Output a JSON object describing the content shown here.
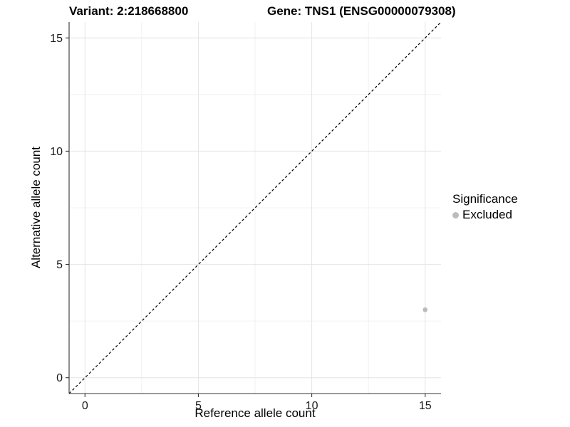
{
  "chart_data": {
    "type": "scatter",
    "title_left": "Variant: 2:218668800",
    "title_right": "Gene: TNS1 (ENSG00000079308)",
    "xlabel": "Reference allele count",
    "ylabel": "Alternative allele count",
    "xlim": [
      -0.7,
      15.7
    ],
    "ylim": [
      -0.7,
      15.7
    ],
    "x_ticks": [
      0,
      5,
      10,
      15
    ],
    "y_ticks": [
      0,
      5,
      10,
      15
    ],
    "grid": {
      "major": true,
      "minor": true
    },
    "legend": {
      "title": "Significance",
      "position": "right",
      "items": [
        {
          "label": "Excluded",
          "color": "#bcbcbc"
        }
      ]
    },
    "series": [
      {
        "name": "Excluded",
        "color": "#bcbcbc",
        "points": [
          {
            "x": 15,
            "y": 3
          }
        ]
      }
    ],
    "reference_line": {
      "type": "identity",
      "equation": "y = x",
      "style": "dashed",
      "color": "#000000"
    },
    "point_radius": 3.3
  },
  "style": {
    "background": "#ffffff",
    "grid_major": "#e4e4e4",
    "grid_minor": "#f1f1f1",
    "axis_line": "#333333",
    "tick_text": "#1a1a1a",
    "title_text": "#000000"
  }
}
